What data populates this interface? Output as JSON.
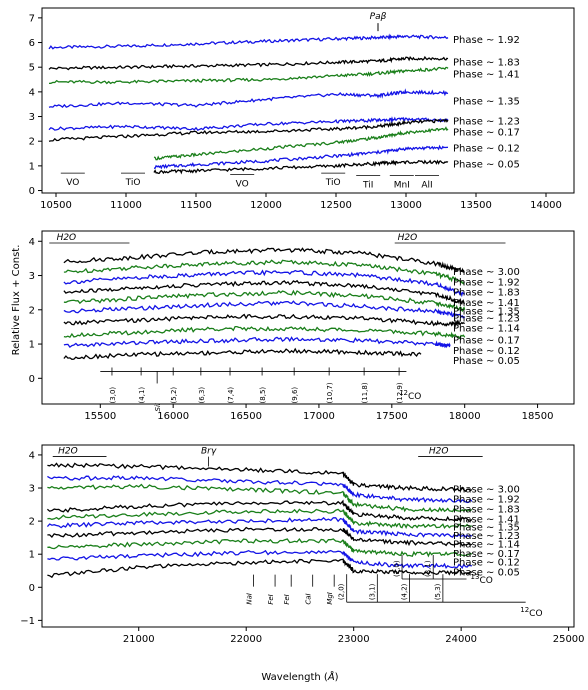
{
  "figure": {
    "ylabel": "Relative Flux + Const.",
    "xlabel_prefix": "Wavelength (",
    "xlabel_unit": "Å",
    "xlabel_suffix": ")"
  },
  "colors": {
    "black": "#000000",
    "green": "#1a7f1a",
    "blue": "#1414e6"
  },
  "chart_data": [
    {
      "type": "line",
      "xlim": [
        10400,
        14200
      ],
      "ylim": [
        -0.1,
        7.4
      ],
      "xticks": [
        "10500",
        "11000",
        "11500",
        "12000",
        "12500",
        "13000",
        "13500",
        "14000"
      ],
      "yticks": [
        "0",
        "1",
        "2",
        "3",
        "4",
        "5",
        "6",
        "7"
      ],
      "series": [
        {
          "name": "Phase ~ 1.92",
          "color": "blue",
          "x": [
            10450,
            11000,
            11500,
            12000,
            12500,
            12800,
            13000,
            13300
          ],
          "y": [
            5.8,
            5.85,
            5.95,
            6.05,
            6.15,
            6.2,
            6.25,
            6.2
          ]
        },
        {
          "name": "Phase ~ 1.83",
          "color": "black",
          "x": [
            10450,
            11000,
            11500,
            12000,
            12500,
            12800,
            13000,
            13300
          ],
          "y": [
            4.95,
            5.0,
            5.05,
            5.1,
            5.2,
            5.25,
            5.35,
            5.35
          ]
        },
        {
          "name": "Phase ~ 1.41",
          "color": "green",
          "x": [
            10450,
            11000,
            11500,
            12000,
            12500,
            12800,
            13000,
            13300
          ],
          "y": [
            4.4,
            4.4,
            4.45,
            4.5,
            4.65,
            4.75,
            4.85,
            4.95
          ]
        },
        {
          "name": "Phase ~ 1.35",
          "color": "blue",
          "x": [
            10450,
            11000,
            11500,
            12000,
            12500,
            12800,
            13000,
            13300
          ],
          "y": [
            3.4,
            3.55,
            3.45,
            3.7,
            3.9,
            3.85,
            4.0,
            3.95
          ]
        },
        {
          "name": "Phase ~ 1.23",
          "color": "blue",
          "x": [
            10450,
            11000,
            11500,
            12000,
            12500,
            12800,
            13000,
            13300
          ],
          "y": [
            2.5,
            2.6,
            2.5,
            2.7,
            2.8,
            2.85,
            2.9,
            2.85
          ]
        },
        {
          "name": "Phase ~ 0.17",
          "color": "black",
          "x": [
            10450,
            11000,
            11500,
            12000,
            12500,
            12800,
            13000,
            13300
          ],
          "y": [
            2.05,
            2.2,
            2.35,
            2.4,
            2.5,
            2.6,
            2.75,
            2.85
          ]
        },
        {
          "name": "Phase ~ 0.12",
          "color": "green",
          "x": [
            11200,
            11500,
            12000,
            12500,
            12800,
            13000,
            13300
          ],
          "y": [
            1.3,
            1.45,
            1.7,
            1.95,
            2.15,
            2.35,
            2.5
          ]
        },
        {
          "name": "Phase ~ 0.05",
          "color": "blue",
          "x": [
            11200,
            11500,
            12000,
            12500,
            12800,
            13000,
            13300
          ],
          "y": [
            0.95,
            1.05,
            1.2,
            1.4,
            1.55,
            1.7,
            1.75
          ]
        },
        {
          "name": "",
          "color": "black",
          "x": [
            11200,
            11500,
            12000,
            12500,
            12800,
            13000,
            13300
          ],
          "y": [
            0.75,
            0.8,
            0.9,
            1.0,
            1.1,
            1.15,
            1.15
          ]
        }
      ],
      "phase_labels": [
        "Phase ~ 1.92",
        "Phase ~ 1.83",
        "Phase ~ 1.41",
        "Phase ~ 1.35",
        "Phase ~ 1.23",
        "Phase ~ 0.17",
        "Phase ~ 0.12",
        "Phase ~ 0.05"
      ],
      "phase_label_y": [
        6.1,
        5.2,
        4.7,
        3.6,
        2.8,
        2.35,
        1.7,
        1.05
      ],
      "annotations": [
        {
          "text": "VO",
          "x": 10620,
          "y": 0.3
        },
        {
          "text": "TiO",
          "x": 11050,
          "y": 0.3
        },
        {
          "text": "VO",
          "x": 11830,
          "y": 0.25
        },
        {
          "text": "TiO",
          "x": 12480,
          "y": 0.3
        },
        {
          "text": "TiI",
          "x": 12730,
          "y": 0.2
        },
        {
          "text": "MnI",
          "x": 12970,
          "y": 0.2
        },
        {
          "text": "AlI",
          "x": 13150,
          "y": 0.2
        },
        {
          "text": "Paβ",
          "x": 12800,
          "y": 6.95
        }
      ]
    },
    {
      "type": "line",
      "xlim": [
        15100,
        18750
      ],
      "ylim": [
        -0.75,
        4.3
      ],
      "xticks": [
        "15500",
        "16000",
        "16500",
        "17000",
        "17500",
        "18000",
        "18500"
      ],
      "yticks": [
        "0",
        "1",
        "2",
        "3",
        "4"
      ],
      "series": [
        {
          "name": "Phase ~ 3.00",
          "color": "black",
          "x": [
            15250,
            15800,
            16300,
            16800,
            17300,
            17800,
            18000
          ],
          "y": [
            3.4,
            3.55,
            3.7,
            3.75,
            3.65,
            3.35,
            3.1
          ]
        },
        {
          "name": "Phase ~ 1.92",
          "color": "green",
          "x": [
            15250,
            15800,
            16300,
            16800,
            17300,
            17800,
            18000
          ],
          "y": [
            3.1,
            3.25,
            3.35,
            3.4,
            3.3,
            3.05,
            2.8
          ]
        },
        {
          "name": "Phase ~ 1.83",
          "color": "blue",
          "x": [
            15250,
            15800,
            16300,
            16800,
            17300,
            17800,
            18000
          ],
          "y": [
            2.8,
            2.95,
            3.05,
            3.1,
            3.0,
            2.75,
            2.45
          ]
        },
        {
          "name": "Phase ~ 1.41",
          "color": "black",
          "x": [
            15250,
            15800,
            16300,
            16800,
            17300,
            17800,
            18000
          ],
          "y": [
            2.5,
            2.65,
            2.75,
            2.8,
            2.7,
            2.45,
            2.2
          ]
        },
        {
          "name": "Phase ~ 1.35",
          "color": "green",
          "x": [
            15250,
            15800,
            16300,
            16800,
            17300,
            17800,
            18000
          ],
          "y": [
            2.2,
            2.35,
            2.45,
            2.5,
            2.4,
            2.2,
            2.0
          ]
        },
        {
          "name": "Phase ~ 1.23",
          "color": "blue",
          "x": [
            15250,
            15800,
            16300,
            16800,
            17300,
            17800,
            18000
          ],
          "y": [
            1.95,
            2.05,
            2.15,
            2.2,
            2.1,
            1.95,
            1.8
          ]
        },
        {
          "name": "Phase ~ 1.14",
          "color": "black",
          "x": [
            15250,
            15800,
            16300,
            16800,
            17300,
            17800,
            18000
          ],
          "y": [
            1.6,
            1.7,
            1.8,
            1.8,
            1.75,
            1.6,
            1.6
          ]
        },
        {
          "name": "Phase ~ 0.17",
          "color": "green",
          "x": [
            15250,
            15800,
            16300,
            16800,
            17300,
            17800,
            18000
          ],
          "y": [
            1.25,
            1.35,
            1.45,
            1.45,
            1.4,
            1.3,
            1.2
          ]
        },
        {
          "name": "Phase ~ 0.12",
          "color": "blue",
          "x": [
            15250,
            15800,
            16300,
            16800,
            17300,
            17800,
            17900
          ],
          "y": [
            0.95,
            1.05,
            1.1,
            1.15,
            1.1,
            1.0,
            0.95
          ]
        },
        {
          "name": "Phase ~ 0.05",
          "color": "black",
          "x": [
            15250,
            15800,
            16300,
            16800,
            17300,
            17700
          ],
          "y": [
            0.6,
            0.7,
            0.75,
            0.8,
            0.75,
            0.7
          ]
        }
      ],
      "phase_labels": [
        "Phase ~ 3.00",
        "Phase ~ 1.92",
        "Phase ~ 1.83",
        "Phase ~ 1.41",
        "Phase ~ 1.35",
        "Phase ~ 1.23",
        "Phase ~ 1.14",
        "Phase ~ 0.17",
        "Phase ~ 0.12",
        "Phase ~ 0.05"
      ],
      "phase_label_y": [
        3.1,
        2.8,
        2.5,
        2.2,
        1.95,
        1.75,
        1.45,
        1.1,
        0.8,
        0.5
      ],
      "co_bands": [
        "(3,0)",
        "(4,1)",
        "(5,2)",
        "(6,3)",
        "(7,4)",
        "(8,5)",
        "(9,6)",
        "(10,7)",
        "(11,8)",
        "(12,9)"
      ],
      "co_band_x": [
        15580,
        15780,
        16000,
        16190,
        16390,
        16610,
        16830,
        17070,
        17310,
        17550
      ],
      "sil": {
        "text": "SiI",
        "x": 15890
      },
      "co_label": "CO",
      "co_label_sup": "12",
      "h2o_left": "H2O",
      "h2o_right": "H2O"
    },
    {
      "type": "line",
      "xlim": [
        20100,
        25050
      ],
      "ylim": [
        -1.2,
        4.3
      ],
      "xticks": [
        "21000",
        "22000",
        "23000",
        "24000",
        "25000"
      ],
      "yticks": [
        "−1",
        "0",
        "1",
        "2",
        "3",
        "4"
      ],
      "series": [
        {
          "name": "Phase ~ 3.00",
          "color": "black",
          "x": [
            20150,
            21000,
            22000,
            22900,
            23000,
            23500,
            24100
          ],
          "y": [
            3.7,
            3.65,
            3.55,
            3.45,
            3.1,
            3.0,
            2.95
          ]
        },
        {
          "name": "Phase ~ 1.92",
          "color": "blue",
          "x": [
            20150,
            21000,
            22000,
            22900,
            23000,
            23500,
            24100
          ],
          "y": [
            3.3,
            3.3,
            3.2,
            3.1,
            2.8,
            2.65,
            2.6
          ]
        },
        {
          "name": "Phase ~ 1.83",
          "color": "green",
          "x": [
            20150,
            21000,
            22000,
            22900,
            23000,
            23500,
            24100
          ],
          "y": [
            3.0,
            3.05,
            2.95,
            2.85,
            2.5,
            2.35,
            2.35
          ]
        },
        {
          "name": "Phase ~ 1.41",
          "color": "black",
          "x": [
            20150,
            21000,
            22000,
            22900,
            23000,
            23500,
            24100
          ],
          "y": [
            2.3,
            2.45,
            2.55,
            2.55,
            2.2,
            2.1,
            2.05
          ]
        },
        {
          "name": "Phase ~ 1.35",
          "color": "green",
          "x": [
            20150,
            21000,
            22000,
            22900,
            23000,
            23500,
            24100
          ],
          "y": [
            2.1,
            2.2,
            2.3,
            2.3,
            1.95,
            1.85,
            1.85
          ]
        },
        {
          "name": "Phase ~ 1.23",
          "color": "blue",
          "x": [
            20150,
            21000,
            22000,
            22900,
            23000,
            23500,
            24100
          ],
          "y": [
            1.85,
            1.95,
            2.0,
            2.05,
            1.7,
            1.6,
            1.55
          ]
        },
        {
          "name": "Phase ~ 1.14",
          "color": "black",
          "x": [
            20150,
            21000,
            22000,
            22900,
            23000,
            23500,
            24100
          ],
          "y": [
            1.55,
            1.65,
            1.75,
            1.75,
            1.45,
            1.35,
            1.3
          ]
        },
        {
          "name": "Phase ~ 0.17",
          "color": "green",
          "x": [
            20150,
            21000,
            22000,
            22900,
            23000,
            23500,
            24100
          ],
          "y": [
            1.2,
            1.3,
            1.4,
            1.4,
            1.1,
            1.0,
            1.0
          ]
        },
        {
          "name": "Phase ~ 0.12",
          "color": "blue",
          "x": [
            20150,
            21000,
            22000,
            22900,
            23000,
            23500,
            24100
          ],
          "y": [
            0.85,
            0.95,
            1.05,
            1.05,
            0.75,
            0.65,
            0.65
          ]
        },
        {
          "name": "Phase ~ 0.05",
          "color": "black",
          "x": [
            20150,
            21000,
            22000,
            22900,
            23000,
            23500,
            24100
          ],
          "y": [
            0.35,
            0.6,
            0.75,
            0.8,
            0.5,
            0.45,
            0.45
          ]
        }
      ],
      "phase_labels": [
        "Phase ~ 3.00",
        "Phase ~ 1.92",
        "Phase ~ 1.83",
        "Phase ~ 1.41",
        "Phase ~ 1.35",
        "Phase ~ 1.23",
        "Phase ~ 1.14",
        "Phase ~ 0.17",
        "Phase ~ 0.12",
        "Phase ~ 0.05"
      ],
      "phase_label_y": [
        2.95,
        2.65,
        2.35,
        2.05,
        1.8,
        1.55,
        1.3,
        1.0,
        0.75,
        0.45
      ],
      "lines": [
        {
          "text": "NaI",
          "x": 22050
        },
        {
          "text": "FeI",
          "x": 22250
        },
        {
          "text": "FeI",
          "x": 22400
        },
        {
          "text": "CaI",
          "x": 22600
        },
        {
          "text": "MgI",
          "x": 22800
        }
      ],
      "co12_bands": [
        "(2,0)",
        "(3,1)",
        "(4,2)",
        "(5,3)"
      ],
      "co12_band_x": [
        22935,
        23220,
        23520,
        23830
      ],
      "co13_bands": [
        "(2,0)",
        "(3,1)"
      ],
      "co13_band_x": [
        23450,
        23740
      ],
      "co12_label": "CO",
      "co12_label_sup": "12",
      "co13_label": "CO",
      "co13_label_sup": "13",
      "brg": "Brγ",
      "h2o_left": "H2O",
      "h2o_right": "H2O"
    }
  ]
}
